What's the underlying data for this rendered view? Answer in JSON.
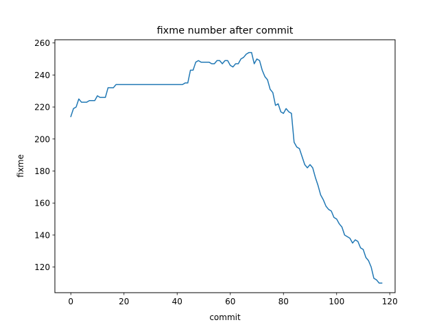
{
  "chart_data": {
    "type": "line",
    "title": "fixme number after commit",
    "xlabel": "commit",
    "ylabel": "fixme",
    "xlim": [
      -6,
      122
    ],
    "ylim": [
      104,
      262
    ],
    "xticks": [
      0,
      20,
      40,
      60,
      80,
      100,
      120
    ],
    "yticks": [
      120,
      140,
      160,
      180,
      200,
      220,
      240,
      260
    ],
    "grid": false,
    "line_color": "#1f77b4",
    "series": [
      {
        "x": [
          0,
          1,
          2,
          3,
          4,
          5,
          6,
          7,
          8,
          9,
          10,
          11,
          12,
          13,
          14,
          15,
          16,
          17,
          18,
          19,
          20,
          21,
          22,
          23,
          24,
          25,
          26,
          27,
          28,
          29,
          30,
          31,
          32,
          33,
          34,
          35,
          36,
          37,
          38,
          39,
          40,
          41,
          42,
          43,
          44,
          45,
          46,
          47,
          48,
          49,
          50,
          51,
          52,
          53,
          54,
          55,
          56,
          57,
          58,
          59,
          60,
          61,
          62,
          63,
          64,
          65,
          66,
          67,
          68,
          69,
          70,
          71,
          72,
          73,
          74,
          75,
          76,
          77,
          78,
          79,
          80,
          81,
          82,
          83,
          84,
          85,
          86,
          87,
          88,
          89,
          90,
          91,
          92,
          93,
          94,
          95,
          96,
          97,
          98,
          99,
          100,
          101,
          102,
          103,
          104,
          105,
          106,
          107,
          108,
          109,
          110,
          111,
          112,
          113,
          114,
          115,
          116,
          117
        ],
        "y": [
          214,
          219,
          220,
          225,
          223,
          223,
          223,
          224,
          224,
          224,
          227,
          226,
          226,
          226,
          232,
          232,
          232,
          234,
          234,
          234,
          234,
          234,
          234,
          234,
          234,
          234,
          234,
          234,
          234,
          234,
          234,
          234,
          234,
          234,
          234,
          234,
          234,
          234,
          234,
          234,
          234,
          234,
          234,
          235,
          235,
          243,
          243,
          248,
          249,
          248,
          248,
          248,
          248,
          247,
          247,
          249,
          249,
          247,
          249,
          249,
          246,
          245,
          247,
          247,
          250,
          251,
          253,
          254,
          254,
          247,
          250,
          249,
          243,
          239,
          237,
          231,
          229,
          221,
          222,
          217,
          216,
          219,
          217,
          216,
          198,
          195,
          194,
          189,
          184,
          182,
          184,
          182,
          176,
          171,
          165,
          162,
          158,
          156,
          155,
          151,
          150,
          147,
          145,
          140,
          139,
          138,
          135,
          137,
          136,
          132,
          131,
          126,
          124,
          120,
          113,
          112,
          110,
          110
        ]
      }
    ]
  }
}
